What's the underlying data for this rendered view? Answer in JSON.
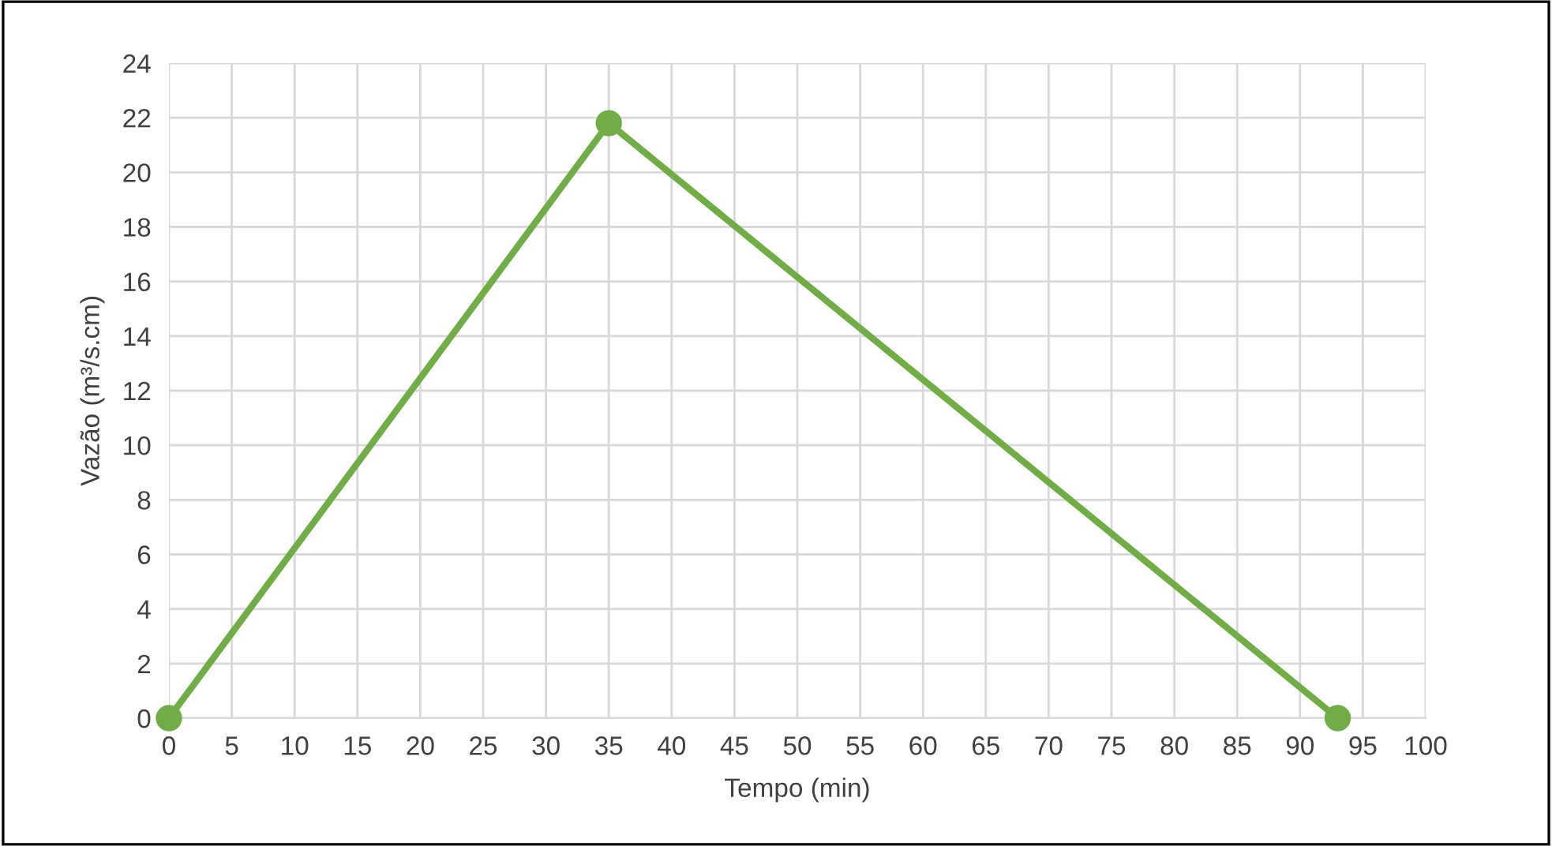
{
  "chart_data": {
    "type": "line",
    "xlabel": "Tempo (min)",
    "ylabel": "Vazão (m³/s.cm)",
    "series": [
      {
        "color": "#70ad47",
        "x": [
          0,
          35,
          93
        ],
        "values": [
          0,
          21.8,
          0
        ]
      }
    ],
    "xlim": [
      0,
      100
    ],
    "xticks": [
      0,
      5,
      10,
      15,
      20,
      25,
      30,
      35,
      40,
      45,
      50,
      55,
      60,
      65,
      70,
      75,
      80,
      85,
      90,
      95,
      100
    ],
    "ylim": [
      0,
      24
    ],
    "yticks": [
      0,
      2,
      4,
      6,
      8,
      10,
      12,
      14,
      16,
      18,
      20,
      22,
      24
    ],
    "grid": true,
    "marker": "circle",
    "line_style": "solid",
    "legend": false
  }
}
